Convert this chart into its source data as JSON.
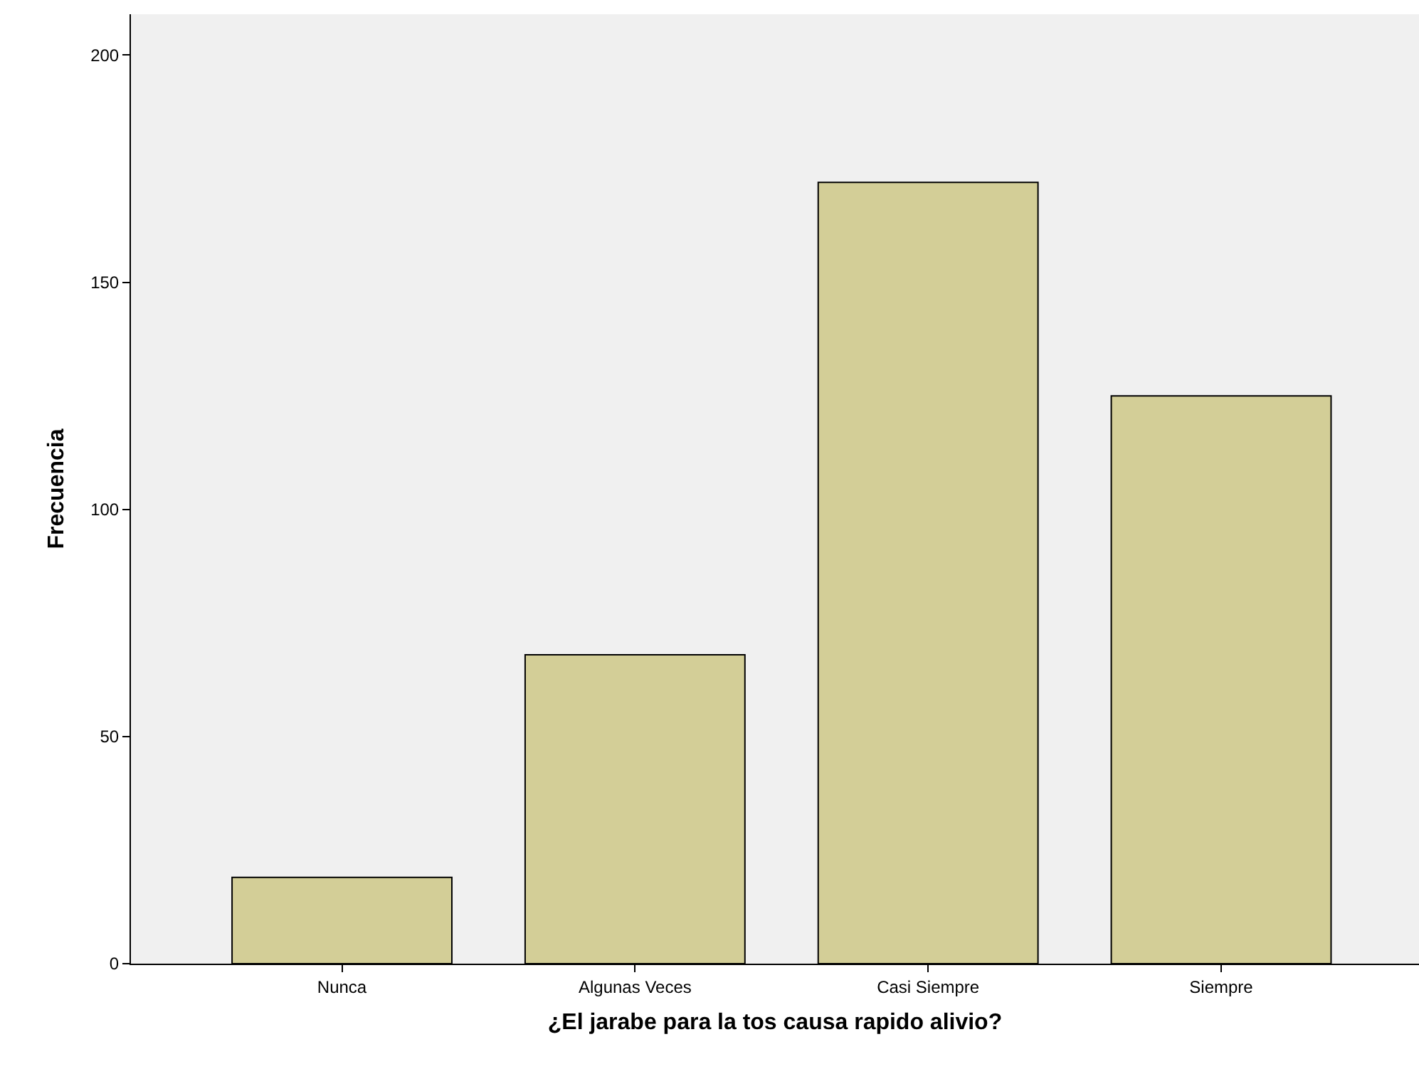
{
  "chart_data": {
    "type": "bar",
    "xlabel": "¿El jarabe para la tos causa rapido alivio?",
    "ylabel": "Frecuencia",
    "categories": [
      "Nunca",
      "Algunas Veces",
      "Casi Siempre",
      "Siempre"
    ],
    "values": [
      19,
      68,
      172,
      125
    ],
    "color": "#d3ce97",
    "ylim": [
      0,
      209
    ],
    "yticks": [
      0,
      50,
      100,
      150,
      200
    ],
    "grid": false,
    "legend": false
  }
}
